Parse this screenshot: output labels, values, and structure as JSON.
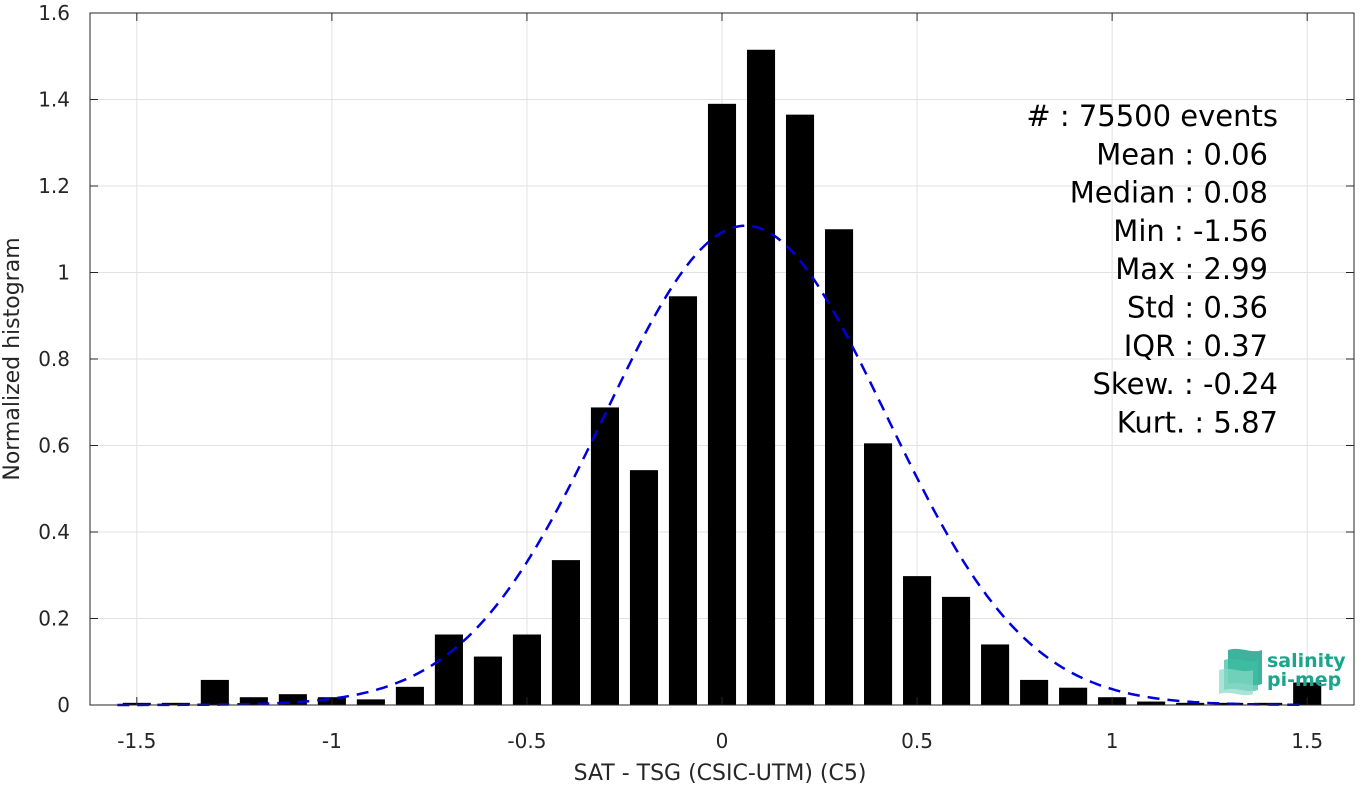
{
  "chart_data": {
    "type": "bar",
    "xlabel": "SAT - TSG (CSIC-UTM) (C5)",
    "ylabel": "Normalized histogram",
    "xlim": [
      -1.62,
      1.62
    ],
    "ylim": [
      0,
      1.6
    ],
    "xticks": [
      -1.5,
      -1,
      -0.5,
      0,
      0.5,
      1,
      1.5
    ],
    "xtick_labels": [
      "-1.5",
      "-1",
      "-0.5",
      "0",
      "0.5",
      "1",
      "1.5"
    ],
    "yticks": [
      0,
      0.2,
      0.4,
      0.6,
      0.8,
      1,
      1.2,
      1.4,
      1.6
    ],
    "ytick_labels": [
      "0",
      "0.2",
      "0.4",
      "0.6",
      "0.8",
      "1",
      "1.2",
      "1.4",
      "1.6"
    ],
    "grid": true,
    "bar_color": "#000000",
    "fit_color": "#0000dd",
    "bins": [
      -1.5,
      -1.4,
      -1.3,
      -1.2,
      -1.1,
      -1.0,
      -0.9,
      -0.8,
      -0.7,
      -0.6,
      -0.5,
      -0.4,
      -0.3,
      -0.2,
      -0.1,
      0.0,
      0.1,
      0.2,
      0.3,
      0.4,
      0.5,
      0.6,
      0.7,
      0.8,
      0.9,
      1.0,
      1.1,
      1.2,
      1.3,
      1.4,
      1.5
    ],
    "values": [
      0.005,
      0.005,
      0.058,
      0.018,
      0.025,
      0.018,
      0.013,
      0.042,
      0.163,
      0.112,
      0.163,
      0.335,
      0.688,
      0.543,
      0.945,
      1.39,
      1.515,
      1.365,
      1.1,
      0.605,
      0.298,
      0.25,
      0.14,
      0.058,
      0.04,
      0.018,
      0.008,
      0.005,
      0.005,
      0.005,
      0.052
    ],
    "fit": {
      "type": "gaussian",
      "style": "dashed",
      "mean": 0.06,
      "std": 0.36
    },
    "stats": [
      "#  : 75500 events",
      "Mean : 0.06",
      "Median : 0.08",
      "Min : -1.56",
      "Max : 2.99",
      "Std : 0.36",
      "IQR : 0.37",
      "Skew. : -0.24",
      "Kurt. : 5.87"
    ]
  },
  "logo": {
    "line1": "salinity",
    "line2": "pi-mep",
    "color": "#1ba58c"
  }
}
